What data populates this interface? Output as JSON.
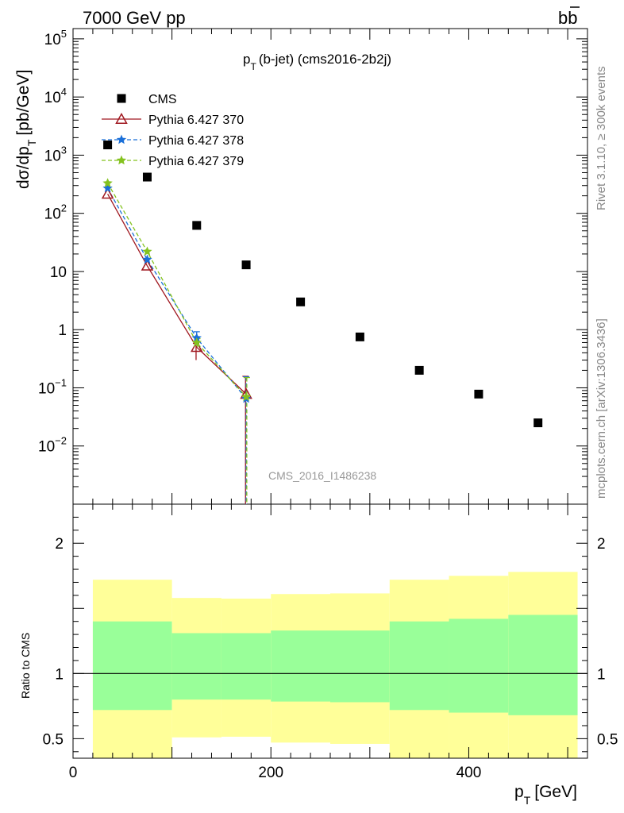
{
  "header": {
    "energy_label": "7000 GeV pp",
    "process_label": "bb",
    "plot_title": "p",
    "plot_title_sub": "T",
    "plot_title_rest": "(b-jet) (cms2016-2b2j)",
    "watermark": "CMS_2016_I1486238",
    "side_rivet": "Rivet 3.1.10, ≥ 300k events",
    "side_mcplots": "mcplots.cern.ch [arXiv:1306.3436]"
  },
  "axes": {
    "ylabel_main": "dσ/dp",
    "ylabel_main_sub": "T",
    "ylabel_main_unit": "[pb/GeV]",
    "ylabel_ratio": "Ratio to CMS",
    "xlabel": "p",
    "xlabel_sub": "T",
    "xlabel_unit": "[GeV]"
  },
  "chart_data": [
    {
      "type": "scatter",
      "panel": "main",
      "scale": "log",
      "xlim": [
        0,
        520
      ],
      "ylim": [
        0.001,
        150000
      ],
      "yticks": [
        {
          "value": 100000,
          "base": "10",
          "exp": "5"
        },
        {
          "value": 10000,
          "base": "10",
          "exp": "4"
        },
        {
          "value": 1000,
          "base": "10",
          "exp": "3"
        },
        {
          "value": 100,
          "base": "10",
          "exp": "2"
        },
        {
          "value": 10,
          "base": "10",
          "exp": ""
        },
        {
          "value": 1,
          "base": "1",
          "exp": ""
        },
        {
          "value": 0.1,
          "base": "10",
          "exp": "−1"
        },
        {
          "value": 0.01,
          "base": "10",
          "exp": "−2"
        }
      ],
      "legend_position": "top-left",
      "series": [
        {
          "name": "CMS",
          "marker": "square",
          "color": "#000000",
          "x": [
            35,
            75,
            125,
            175,
            230,
            290,
            350,
            410,
            470
          ],
          "y": [
            1500,
            420,
            62,
            13,
            3,
            0.75,
            0.2,
            0.078,
            0.025
          ]
        },
        {
          "name": "Pythia 6.427 370",
          "marker": "open-triangle",
          "line": "solid",
          "color": "#a01820",
          "x": [
            35,
            75,
            125,
            175
          ],
          "y": [
            215,
            12.5,
            0.5,
            0.078
          ],
          "err_lo": [
            0,
            0,
            0.2,
            0.079
          ],
          "err_hi": [
            0,
            0,
            0.08,
            0.08
          ]
        },
        {
          "name": "Pythia 6.427 378",
          "marker": "star",
          "line": "dashed",
          "color": "#1a6fd8",
          "x": [
            35,
            75,
            125,
            175
          ],
          "y": [
            270,
            16,
            0.72,
            0.065
          ],
          "err_lo": [
            0,
            0,
            0.1,
            0.066
          ],
          "err_hi": [
            0,
            0,
            0.2,
            0.09
          ]
        },
        {
          "name": "Pythia 6.427 379",
          "marker": "star",
          "line": "dashed",
          "color": "#84c21f",
          "x": [
            35,
            75,
            125,
            175
          ],
          "y": [
            330,
            22,
            0.6,
            0.07
          ],
          "err_lo": [
            0,
            0,
            0.1,
            0.071
          ],
          "err_hi": [
            0,
            0,
            0.1,
            0.08
          ]
        }
      ]
    },
    {
      "type": "area",
      "panel": "ratio",
      "xlim": [
        0,
        520
      ],
      "ylim": [
        0.35,
        2.3
      ],
      "yticks": [
        0.5,
        1,
        2
      ],
      "ytick_labels": [
        "0.5",
        "1",
        "2"
      ],
      "xticks": [
        0,
        200,
        400
      ],
      "xtick_labels": [
        "0",
        "200",
        "400"
      ],
      "reference_line": 1,
      "bins": [
        {
          "x0": 20,
          "x1": 100,
          "band_lo": 0.72,
          "band_hi": 1.4,
          "total_lo": 0.35,
          "total_hi": 1.72
        },
        {
          "x0": 100,
          "x1": 150,
          "band_lo": 0.8,
          "band_hi": 1.31,
          "total_lo": 0.51,
          "total_hi": 1.58
        },
        {
          "x0": 150,
          "x1": 200,
          "band_lo": 0.8,
          "band_hi": 1.31,
          "total_lo": 0.515,
          "total_hi": 1.575
        },
        {
          "x0": 200,
          "x1": 260,
          "band_lo": 0.785,
          "band_hi": 1.33,
          "total_lo": 0.47,
          "total_hi": 1.61
        },
        {
          "x0": 260,
          "x1": 320,
          "band_lo": 0.78,
          "band_hi": 1.33,
          "total_lo": 0.46,
          "total_hi": 1.615
        },
        {
          "x0": 320,
          "x1": 380,
          "band_lo": 0.72,
          "band_hi": 1.4,
          "total_lo": 0.35,
          "total_hi": 1.72
        },
        {
          "x0": 380,
          "x1": 440,
          "band_lo": 0.7,
          "band_hi": 1.42,
          "total_lo": 0.35,
          "total_hi": 1.75
        },
        {
          "x0": 440,
          "x1": 510,
          "band_lo": 0.68,
          "band_hi": 1.45,
          "total_lo": 0.35,
          "total_hi": 1.78
        }
      ],
      "colors": {
        "inner_band": "#99ff99",
        "outer_band": "#ffff99"
      }
    }
  ]
}
